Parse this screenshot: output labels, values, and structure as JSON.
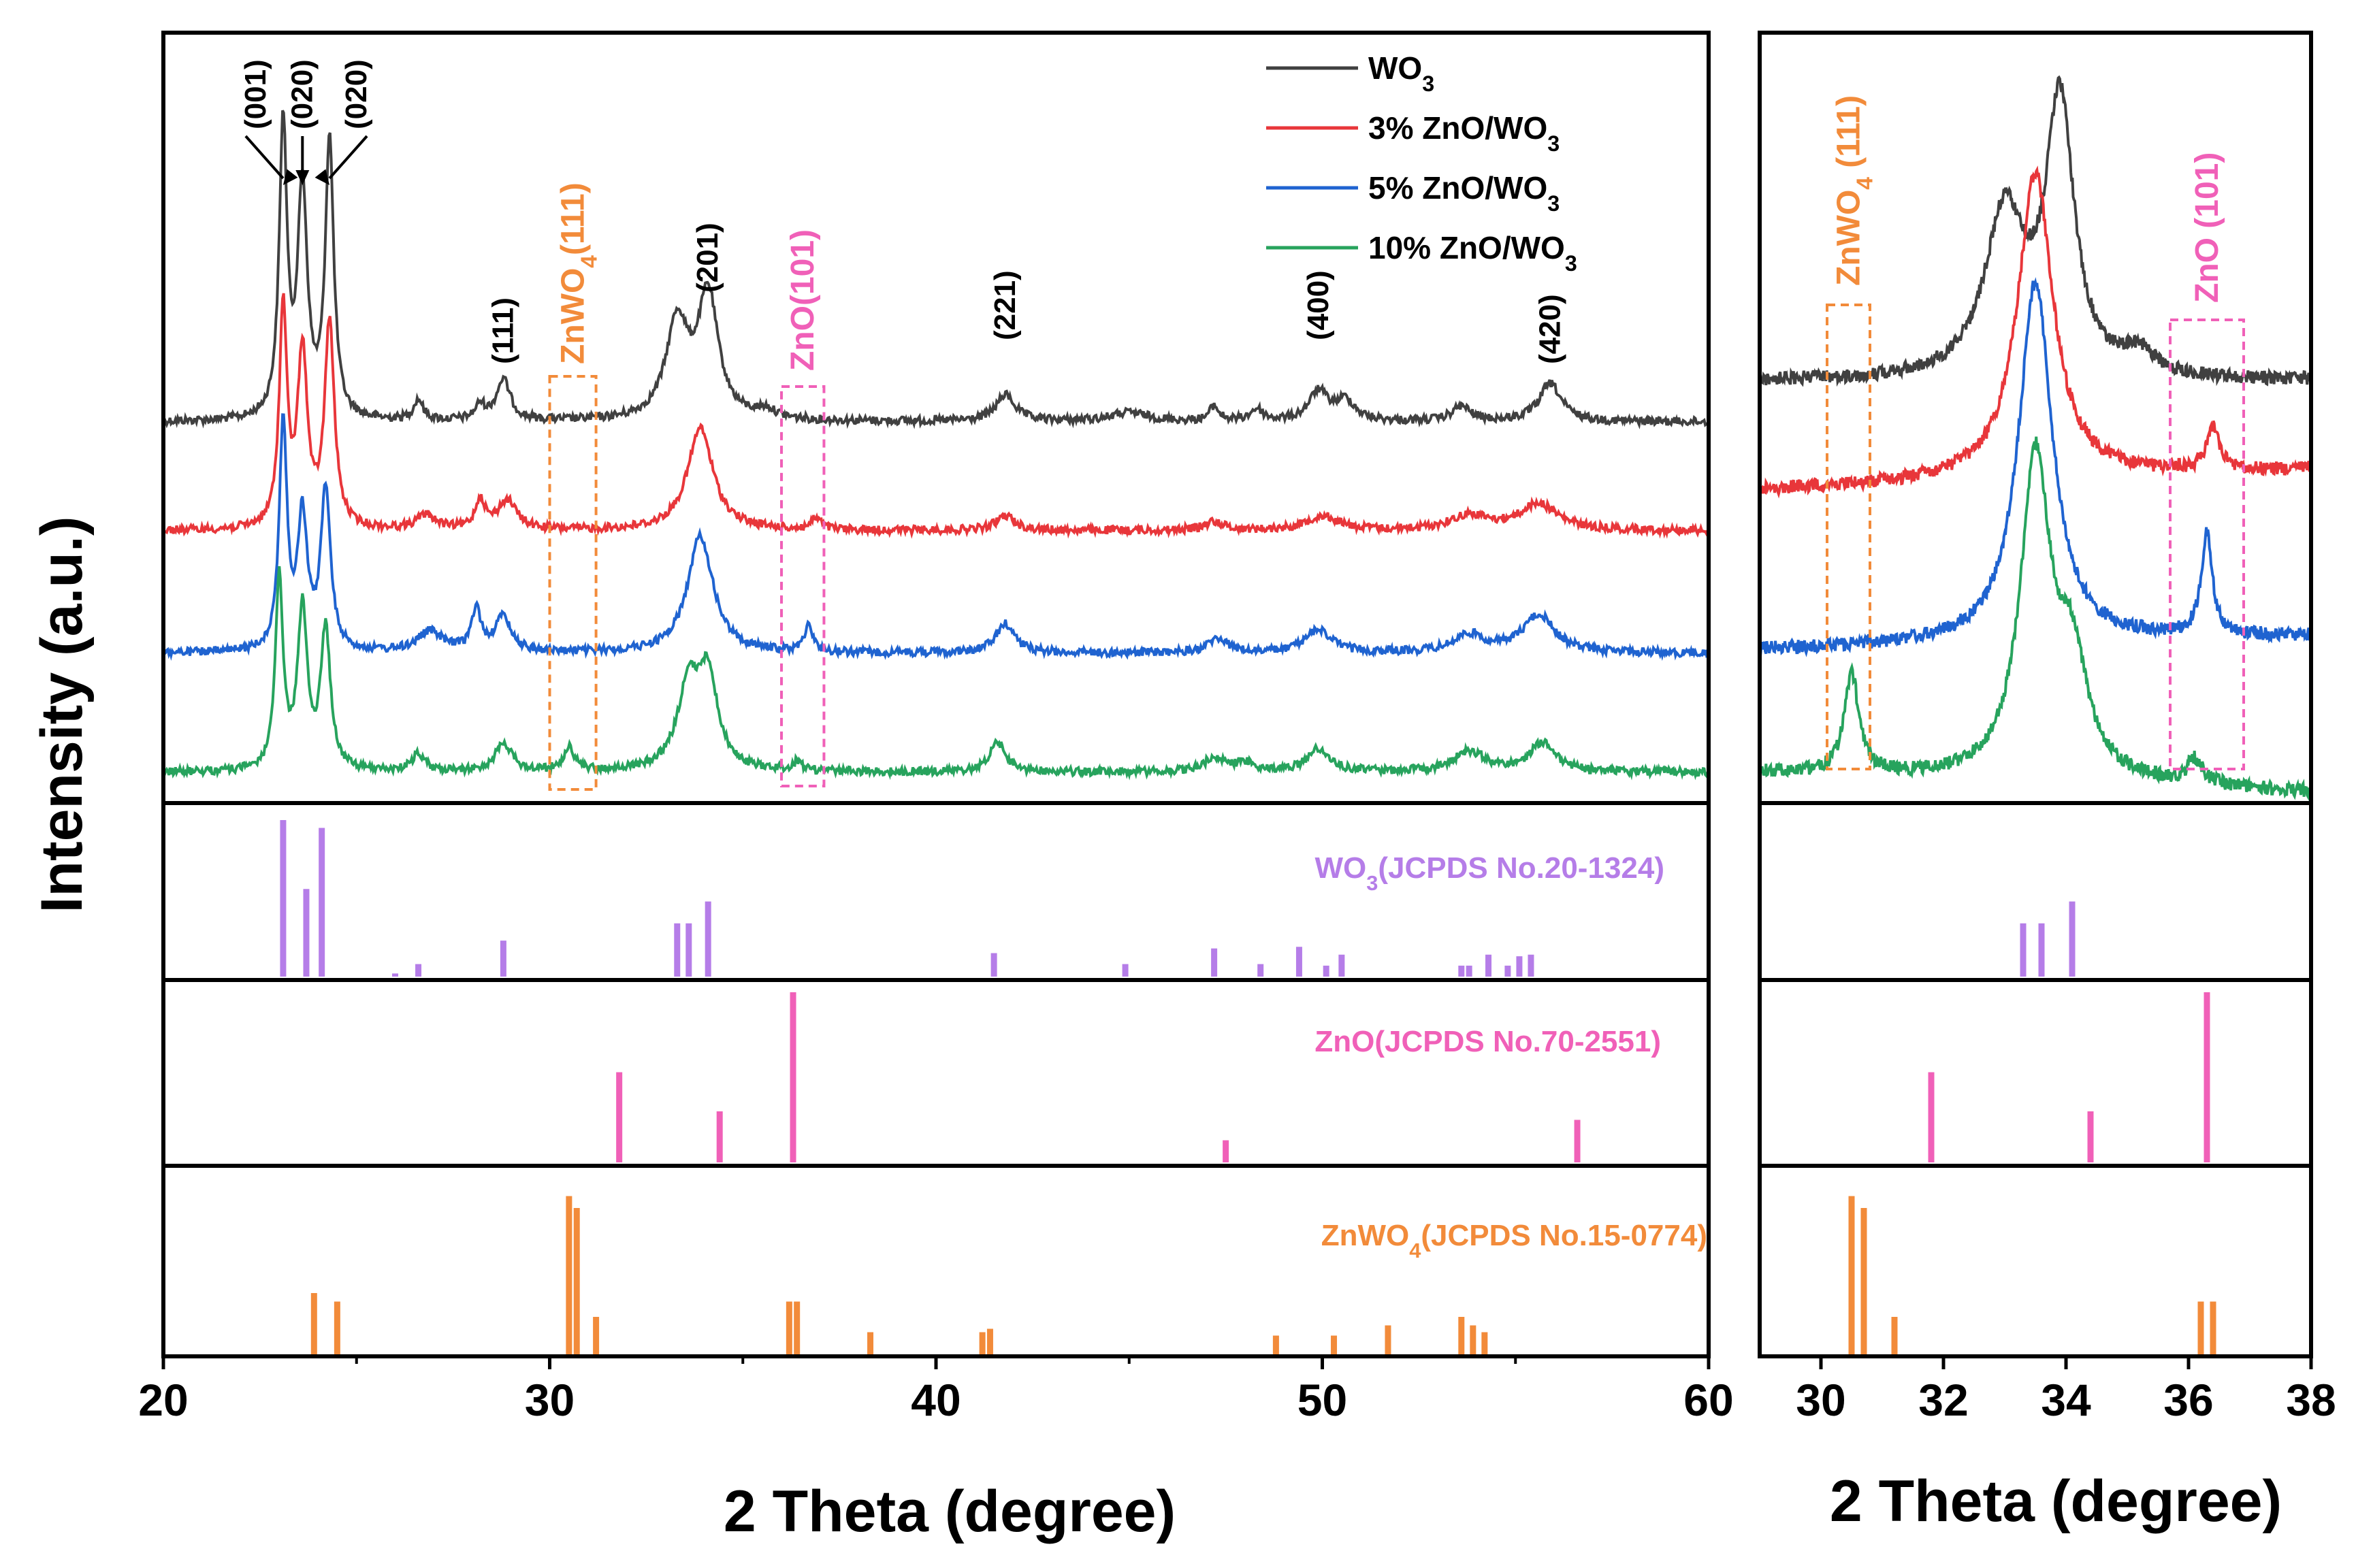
{
  "chart_data": {
    "type": "line",
    "ylabel": "Intensity (a.u.)",
    "colors": {
      "wo3": "#404040",
      "zno3": "#e8363a",
      "zno5": "#1f63d0",
      "zno10": "#27a35d",
      "ref_wo3": "#b57de8",
      "ref_zno": "#f060b8",
      "ref_znwo4": "#f28b3a"
    },
    "legend": [
      {
        "key": "wo3",
        "base": "WO",
        "sub": "3",
        "rest": ""
      },
      {
        "key": "zno3",
        "base": "3% ZnO/WO",
        "sub": "3",
        "rest": ""
      },
      {
        "key": "zno5",
        "base": "5% ZnO/WO",
        "sub": "3",
        "rest": ""
      },
      {
        "key": "zno10",
        "base": "10% ZnO/WO",
        "sub": "3",
        "rest": ""
      }
    ],
    "left_panel": {
      "xlabel": "2 Theta (degree)",
      "xlim": [
        20,
        60
      ],
      "xticks": [
        "20",
        "30",
        "40",
        "50",
        "60"
      ],
      "peak_labels": [
        {
          "text": "(001)",
          "x": 23.1
        },
        {
          "text": "(020)",
          "x": 23.6
        },
        {
          "text": "(020)",
          "x": 24.3
        },
        {
          "text": "(111)",
          "x": 28.8
        },
        {
          "text": "(201)",
          "x": 34.1
        },
        {
          "text": "(221)",
          "x": 41.8
        },
        {
          "text": "(400)",
          "x": 49.9
        },
        {
          "text": "(420)",
          "x": 55.9
        }
      ],
      "box_znwo4": {
        "text_base": "ZnWO",
        "text_sub": "4",
        "text_rest": "(111)",
        "xmin": 30.0,
        "xmax": 31.2
      },
      "box_zno": {
        "text": "ZnO(101)",
        "xmin": 36.0,
        "xmax": 37.1
      }
    },
    "right_panel": {
      "xlabel": "2 Theta (degree)",
      "xlim": [
        29,
        38
      ],
      "xticks": [
        "30",
        "32",
        "34",
        "36",
        "38"
      ],
      "box_znwo4": {
        "text_base": "ZnWO",
        "text_sub": "4",
        "text_rest": " (111)",
        "xmin": 30.1,
        "xmax": 30.8
      },
      "box_zno": {
        "text": "ZnO (101)",
        "xmin": 35.7,
        "xmax": 36.9
      }
    },
    "series": [
      {
        "key": "wo3",
        "name": "WO3",
        "peaks": [
          [
            23.1,
            1.0,
            0.12
          ],
          [
            23.6,
            0.78,
            0.15
          ],
          [
            24.3,
            0.95,
            0.13
          ],
          [
            26.6,
            0.07,
            0.15
          ],
          [
            28.2,
            0.05,
            0.15
          ],
          [
            28.8,
            0.14,
            0.22
          ],
          [
            33.3,
            0.33,
            0.35
          ],
          [
            34.1,
            0.42,
            0.32
          ],
          [
            35.6,
            0.03,
            0.3
          ],
          [
            41.8,
            0.09,
            0.3
          ],
          [
            45.0,
            0.03,
            0.6
          ],
          [
            47.2,
            0.05,
            0.15
          ],
          [
            48.3,
            0.04,
            0.2
          ],
          [
            49.9,
            0.1,
            0.3
          ],
          [
            50.6,
            0.07,
            0.3
          ],
          [
            53.6,
            0.05,
            0.3
          ],
          [
            55.9,
            0.13,
            0.35
          ]
        ],
        "zoom_peaks": [
          [
            33.0,
            0.45,
            0.4
          ],
          [
            33.9,
            0.75,
            0.28
          ],
          [
            35.2,
            0.06,
            0.3
          ],
          [
            31.0,
            0.0,
            0.3
          ]
        ]
      },
      {
        "key": "zno3",
        "name": "3% ZnO/WO3",
        "peaks": [
          [
            23.1,
            0.75,
            0.12
          ],
          [
            23.6,
            0.6,
            0.15
          ],
          [
            24.3,
            0.7,
            0.15
          ],
          [
            26.8,
            0.05,
            0.3
          ],
          [
            28.2,
            0.1,
            0.15
          ],
          [
            28.9,
            0.1,
            0.3
          ],
          [
            33.9,
            0.35,
            0.4
          ],
          [
            36.9,
            0.04,
            0.15
          ],
          [
            41.8,
            0.05,
            0.3
          ],
          [
            47.2,
            0.03,
            0.3
          ],
          [
            50.0,
            0.05,
            0.5
          ],
          [
            53.8,
            0.05,
            0.6
          ],
          [
            55.6,
            0.09,
            0.6
          ]
        ],
        "zoom_peaks": [
          [
            33.5,
            0.85,
            0.35
          ],
          [
            36.4,
            0.12,
            0.12
          ]
        ]
      },
      {
        "key": "zno5",
        "name": "5% ZnO/WO3",
        "peaks": [
          [
            23.1,
            0.78,
            0.12
          ],
          [
            23.6,
            0.45,
            0.15
          ],
          [
            24.2,
            0.55,
            0.15
          ],
          [
            26.9,
            0.07,
            0.4
          ],
          [
            28.1,
            0.14,
            0.15
          ],
          [
            28.8,
            0.12,
            0.25
          ],
          [
            33.9,
            0.4,
            0.4
          ],
          [
            36.7,
            0.1,
            0.12
          ],
          [
            41.8,
            0.1,
            0.3
          ],
          [
            47.3,
            0.05,
            0.3
          ],
          [
            49.9,
            0.08,
            0.4
          ],
          [
            53.8,
            0.06,
            0.5
          ],
          [
            55.6,
            0.13,
            0.5
          ]
        ],
        "zoom_peaks": [
          [
            33.5,
            1.0,
            0.33
          ],
          [
            36.3,
            0.28,
            0.11
          ]
        ]
      },
      {
        "key": "zno10",
        "name": "10% ZnO/WO3",
        "peaks": [
          [
            23.0,
            0.65,
            0.12
          ],
          [
            23.6,
            0.55,
            0.15
          ],
          [
            24.2,
            0.48,
            0.15
          ],
          [
            26.6,
            0.06,
            0.2
          ],
          [
            28.8,
            0.1,
            0.25
          ],
          [
            30.5,
            0.08,
            0.18
          ],
          [
            33.6,
            0.28,
            0.35
          ],
          [
            34.1,
            0.3,
            0.3
          ],
          [
            36.4,
            0.03,
            0.15
          ],
          [
            41.6,
            0.1,
            0.25
          ],
          [
            47.2,
            0.05,
            0.3
          ],
          [
            48.0,
            0.03,
            0.3
          ],
          [
            49.9,
            0.08,
            0.35
          ],
          [
            53.8,
            0.07,
            0.5
          ],
          [
            55.7,
            0.1,
            0.4
          ]
        ],
        "zoom_peaks": [
          [
            30.5,
            0.28,
            0.14
          ],
          [
            33.5,
            0.88,
            0.3
          ],
          [
            34.1,
            0.3,
            0.3
          ],
          [
            36.1,
            0.07,
            0.15
          ]
        ]
      }
    ],
    "reference_patterns": [
      {
        "key": "ref_wo3",
        "label_base": "WO",
        "label_sub": "3",
        "label_rest": "(JCPDS No.20-1324)",
        "lines": [
          [
            23.1,
            1.0
          ],
          [
            23.7,
            0.56
          ],
          [
            24.1,
            0.95
          ],
          [
            26.0,
            0.02
          ],
          [
            26.6,
            0.08
          ],
          [
            28.8,
            0.23
          ],
          [
            33.3,
            0.34
          ],
          [
            33.6,
            0.34
          ],
          [
            34.1,
            0.48
          ],
          [
            41.5,
            0.15
          ],
          [
            44.9,
            0.08
          ],
          [
            47.2,
            0.18
          ],
          [
            48.4,
            0.08
          ],
          [
            49.4,
            0.19
          ],
          [
            50.1,
            0.07
          ],
          [
            50.5,
            0.14
          ],
          [
            53.6,
            0.07
          ],
          [
            53.8,
            0.07
          ],
          [
            54.3,
            0.14
          ],
          [
            54.8,
            0.07
          ],
          [
            55.1,
            0.13
          ],
          [
            55.4,
            0.14
          ]
        ]
      },
      {
        "key": "ref_zno",
        "label_base": "ZnO(JCPDS No.70-2551)",
        "label_sub": "",
        "label_rest": "",
        "lines": [
          [
            31.8,
            0.53
          ],
          [
            34.4,
            0.3
          ],
          [
            36.3,
            1.0
          ],
          [
            47.5,
            0.13
          ],
          [
            56.6,
            0.25
          ]
        ]
      },
      {
        "key": "ref_znwo4",
        "label_base": "ZnWO",
        "label_sub": "4",
        "label_rest": "(JCPDS No.15-0774)",
        "lines": [
          [
            23.9,
            0.36
          ],
          [
            24.5,
            0.31
          ],
          [
            30.5,
            0.93
          ],
          [
            30.7,
            0.86
          ],
          [
            31.2,
            0.22
          ],
          [
            36.2,
            0.31
          ],
          [
            36.4,
            0.31
          ],
          [
            38.3,
            0.13
          ],
          [
            41.2,
            0.13
          ],
          [
            41.4,
            0.15
          ],
          [
            48.8,
            0.11
          ],
          [
            50.3,
            0.11
          ],
          [
            51.7,
            0.17
          ],
          [
            53.6,
            0.22
          ],
          [
            53.9,
            0.17
          ],
          [
            54.2,
            0.13
          ]
        ]
      }
    ]
  }
}
